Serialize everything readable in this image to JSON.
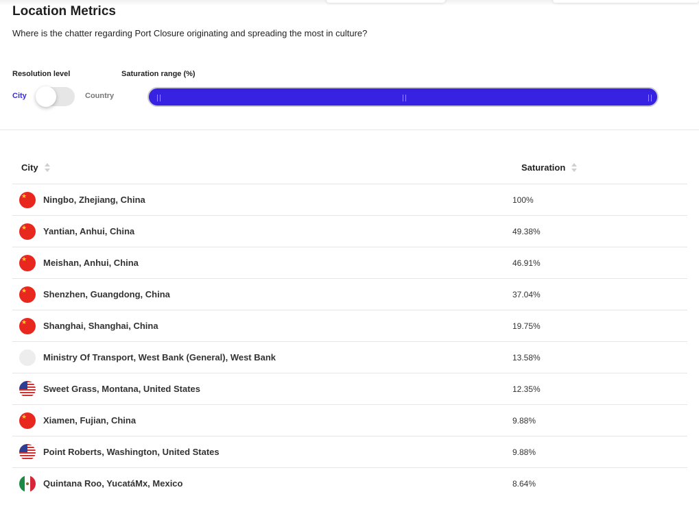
{
  "page": {
    "title": "Location Metrics",
    "subtitle": "Where is the chatter regarding Port Closure originating and spreading the most in culture?"
  },
  "controls": {
    "resolution_label": "Resolution level",
    "resolution_options": [
      "City",
      "Country"
    ],
    "resolution_selected": "City",
    "saturation_label": "Saturation range (%)",
    "accent_color": "#3622e0"
  },
  "table": {
    "headers": {
      "location": "City",
      "saturation": "Saturation"
    },
    "rows": [
      {
        "flag": "china-flag-icon",
        "location": "Ningbo, Zhejiang, China",
        "saturation": "100%"
      },
      {
        "flag": "china-flag-icon",
        "location": "Yantian, Anhui, China",
        "saturation": "49.38%"
      },
      {
        "flag": "china-flag-icon",
        "location": "Meishan, Anhui, China",
        "saturation": "46.91%"
      },
      {
        "flag": "china-flag-icon",
        "location": "Shenzhen, Guangdong, China",
        "saturation": "37.04%"
      },
      {
        "flag": "china-flag-icon",
        "location": "Shanghai, Shanghai, China",
        "saturation": "19.75%"
      },
      {
        "flag": "blank-flag-icon",
        "location": "Ministry Of Transport, West Bank (General), West Bank",
        "saturation": "13.58%"
      },
      {
        "flag": "usa-flag-icon",
        "location": "Sweet Grass, Montana, United States",
        "saturation": "12.35%"
      },
      {
        "flag": "china-flag-icon",
        "location": "Xiamen, Fujian, China",
        "saturation": "9.88%"
      },
      {
        "flag": "usa-flag-icon",
        "location": "Point Roberts, Washington, United States",
        "saturation": "9.88%"
      },
      {
        "flag": "mexico-flag-icon",
        "location": "Quintana Roo, YucatáMx, Mexico",
        "saturation": "8.64%"
      }
    ]
  }
}
